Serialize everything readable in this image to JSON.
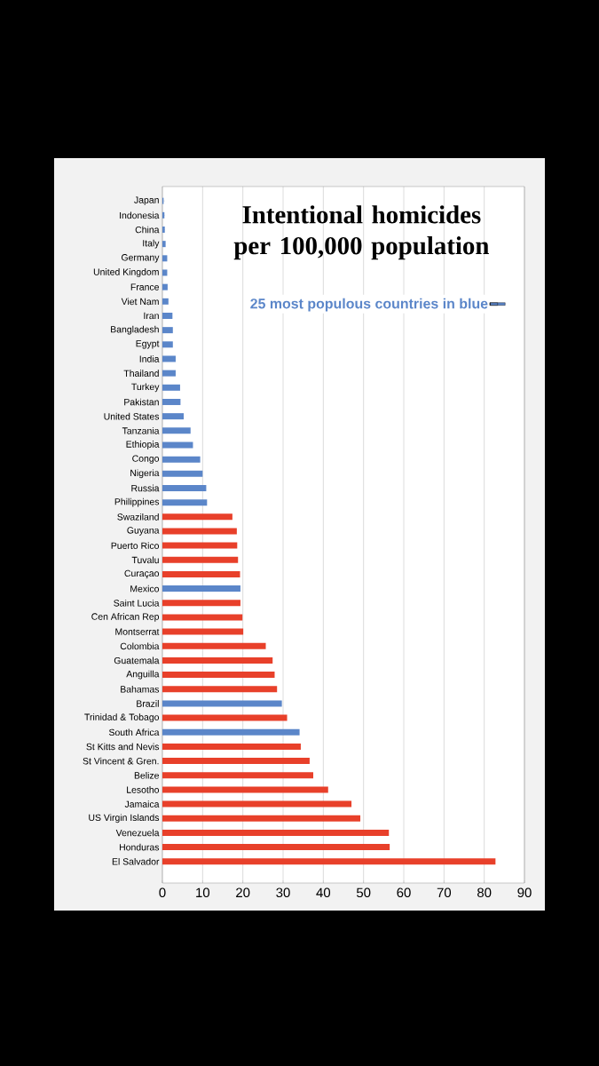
{
  "chart_data": {
    "type": "bar",
    "orientation": "horizontal",
    "title": "Intentional homicides per 100,000 population",
    "categories": [
      "Japan",
      "Indonesia",
      "China",
      "Italy",
      "Germany",
      "United Kingdom",
      "France",
      "Viet Nam",
      "Iran",
      "Bangladesh",
      "Egypt",
      "India",
      "Thailand",
      "Turkey",
      "Pakistan",
      "United States",
      "Tanzania",
      "Ethiopia",
      "Congo",
      "Nigeria",
      "Russia",
      "Philippines",
      "Swaziland",
      "Guyana",
      "Puerto Rico",
      "Tuvalu",
      "Curaçao",
      "Mexico",
      "Saint Lucia",
      "Cen African Rep",
      "Montserrat",
      "Colombia",
      "Guatemala",
      "Anguilla",
      "Bahamas",
      "Brazil",
      "Trinidad & Tobago",
      "South Africa",
      "St Kitts and Nevis",
      "St Vincent & Gren.",
      "Belize",
      "Lesotho",
      "Jamaica",
      "US Virgin Islands",
      "Venezuela",
      "Honduras",
      "El Salvador"
    ],
    "series": [
      {
        "name": "25 most populous countries in blue",
        "color": "#5b86c9",
        "values": [
          0.3,
          0.5,
          0.6,
          0.8,
          1.2,
          1.2,
          1.3,
          1.5,
          2.5,
          2.6,
          2.6,
          3.3,
          3.3,
          4.4,
          4.5,
          5.3,
          7.0,
          7.6,
          9.4,
          10.0,
          10.9,
          11.1,
          null,
          null,
          null,
          null,
          null,
          19.4,
          null,
          null,
          null,
          null,
          null,
          null,
          null,
          29.7,
          null,
          34.1,
          null,
          null,
          null,
          null,
          null,
          null,
          null,
          null,
          null
        ]
      },
      {
        "color": "#e8402a",
        "values": [
          null,
          null,
          null,
          null,
          null,
          null,
          null,
          null,
          null,
          null,
          null,
          null,
          null,
          null,
          null,
          null,
          null,
          null,
          null,
          null,
          null,
          null,
          17.4,
          18.5,
          18.6,
          18.8,
          19.3,
          null,
          19.4,
          19.9,
          20.1,
          25.7,
          27.4,
          27.9,
          28.5,
          null,
          31.0,
          null,
          34.4,
          36.6,
          37.5,
          41.2,
          47.0,
          49.2,
          56.3,
          56.5,
          82.8
        ]
      }
    ],
    "xlim": [
      0,
      90
    ],
    "xticks": [
      0,
      10,
      20,
      30,
      40,
      50,
      60,
      70,
      80,
      90
    ],
    "grid": "x",
    "legend": "top right"
  }
}
